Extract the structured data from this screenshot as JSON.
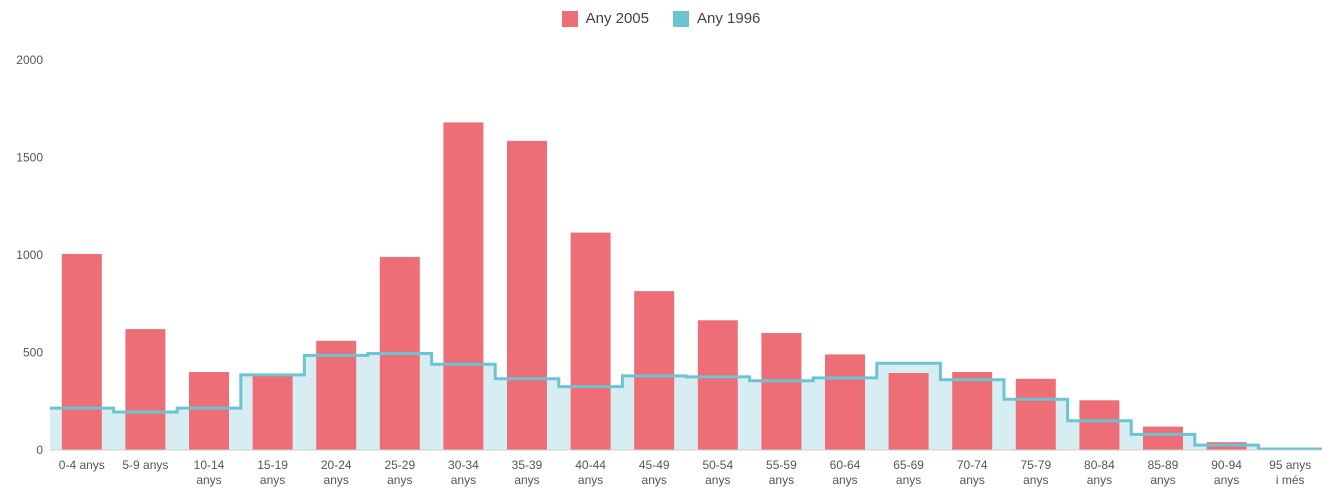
{
  "chart_data": {
    "type": "bar",
    "categories": [
      "0-4 anys",
      "5-9 anys",
      "10-14 anys",
      "15-19 anys",
      "20-24 anys",
      "25-29 anys",
      "30-34 anys",
      "35-39 anys",
      "40-44 anys",
      "45-49 anys",
      "50-54 anys",
      "55-59 anys",
      "60-64 anys",
      "65-69 anys",
      "70-74 anys",
      "75-79 anys",
      "80-84 anys",
      "85-89 anys",
      "90-94 anys",
      "95 anys i més"
    ],
    "series": [
      {
        "name": "Any 2005",
        "type": "bar",
        "color": "#ee6e78",
        "values": [
          1005,
          620,
          400,
          380,
          560,
          990,
          1680,
          1585,
          1115,
          815,
          665,
          600,
          490,
          395,
          400,
          365,
          255,
          120,
          40,
          5
        ]
      },
      {
        "name": "Any 1996",
        "type": "step-area",
        "color": "#6cc4d2",
        "values": [
          215,
          195,
          215,
          385,
          485,
          495,
          440,
          365,
          325,
          380,
          375,
          355,
          370,
          445,
          360,
          260,
          150,
          80,
          25,
          5
        ]
      }
    ],
    "ylim": [
      0,
      2000
    ],
    "yticks": [
      "0",
      "500",
      "1000",
      "1500",
      "2000"
    ],
    "ytick_values": [
      0,
      500,
      1000,
      1500,
      2000
    ],
    "legend_position": "top",
    "grid": false
  }
}
